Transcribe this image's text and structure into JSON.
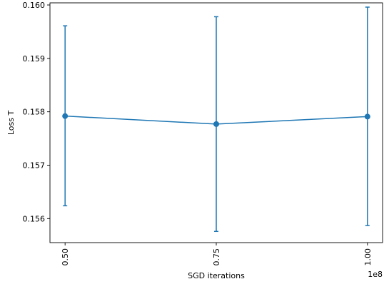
{
  "chart_data": {
    "type": "line",
    "title": "",
    "xlabel": "SGD iterations",
    "ylabel": "Loss T",
    "x_offset_label": "1e8",
    "x_tick_labels": [
      "0.50",
      "0.75",
      "1.00"
    ],
    "x_ticks": [
      0.5,
      0.75,
      1.0
    ],
    "y_tick_labels": [
      "0.156",
      "0.157",
      "0.158",
      "0.159",
      "0.160"
    ],
    "y_ticks": [
      0.156,
      0.157,
      0.158,
      0.159,
      0.16
    ],
    "xlim": [
      0.475,
      1.025
    ],
    "ylim": [
      0.15555,
      0.16004
    ],
    "grid": false,
    "legend": false,
    "series": [
      {
        "color": "#1f77b4",
        "x": [
          0.5,
          0.75,
          1.0
        ],
        "y": [
          0.15792,
          0.15777,
          0.15791
        ],
        "err_low": [
          0.15624,
          0.15576,
          0.15587
        ],
        "err_high": [
          0.15961,
          0.15978,
          0.15996
        ]
      }
    ]
  }
}
